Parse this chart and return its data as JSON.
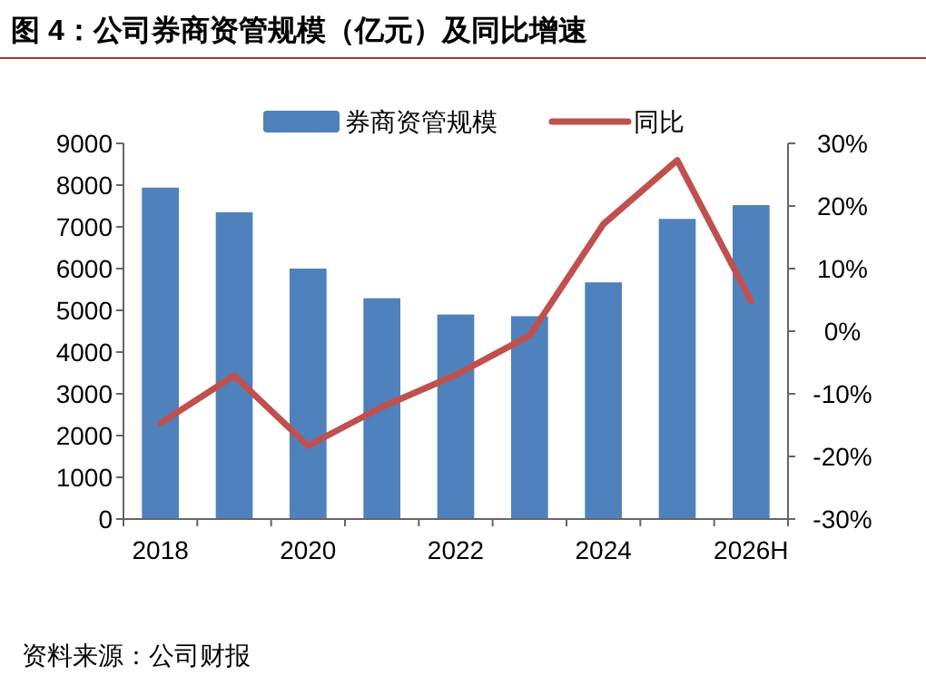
{
  "chart_data": {
    "type": "bar",
    "title": "图 4：公司券商资管规模（亿元）及同比增速",
    "categories": [
      "2018",
      null,
      "2020",
      null,
      "2022",
      null,
      "2024",
      null,
      "2026H"
    ],
    "series": [
      {
        "name": "券商资管规模",
        "color": "#4f81bd",
        "values": [
          7940,
          7350,
          6000,
          5290,
          4900,
          4860,
          5670,
          7190,
          7520
        ]
      },
      {
        "name": "同比",
        "type": "line",
        "axis": "y2",
        "color": "#c0504d",
        "values": [
          -14.7,
          -7.1,
          -18.3,
          -12.1,
          -7.0,
          -0.7,
          17.1,
          27.3,
          4.8
        ]
      }
    ],
    "ylim": [
      0,
      9000
    ],
    "yticks": [
      0,
      1000,
      2000,
      3000,
      4000,
      5000,
      6000,
      7000,
      8000,
      9000
    ],
    "y2lim": [
      -30,
      30
    ],
    "y2ticks": [
      {
        "value": -30,
        "label": "-30%"
      },
      {
        "value": -20,
        "label": "-20%"
      },
      {
        "value": -10,
        "label": "-10%"
      },
      {
        "value": 0,
        "label": "0%"
      },
      {
        "value": 10,
        "label": "10%"
      },
      {
        "value": 20,
        "label": "20%"
      },
      {
        "value": 30,
        "label": "30%"
      }
    ],
    "legend": "top",
    "annotations": [
      "资料来源：公司财报"
    ]
  }
}
